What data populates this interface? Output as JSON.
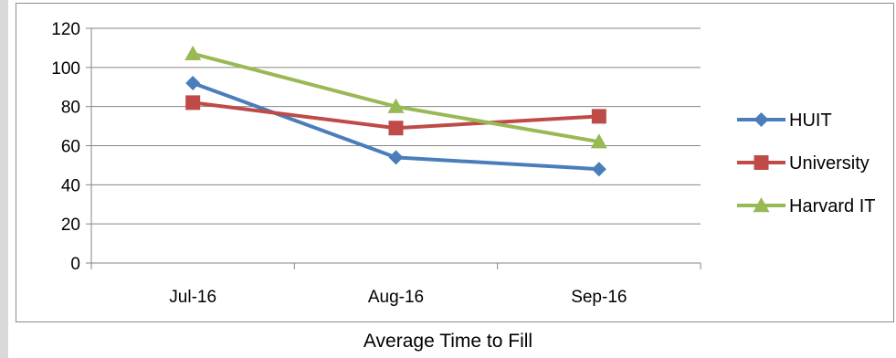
{
  "chart_data": {
    "type": "line",
    "categories": [
      "Jul-16",
      "Aug-16",
      "Sep-16"
    ],
    "ylim": [
      0,
      120
    ],
    "yticks": [
      0,
      20,
      40,
      60,
      80,
      100,
      120
    ],
    "grid": true,
    "legend_position": "right",
    "caption": "Average Time to Fill",
    "series": [
      {
        "name": "HUIT",
        "values": [
          92,
          54,
          48
        ],
        "color": "#4a7ebb",
        "marker": "diamond"
      },
      {
        "name": "University",
        "values": [
          82,
          69,
          75
        ],
        "color": "#be4b48",
        "marker": "square"
      },
      {
        "name": "Harvard IT",
        "values": [
          107,
          80,
          62
        ],
        "color": "#98b954",
        "marker": "triangle"
      }
    ]
  }
}
